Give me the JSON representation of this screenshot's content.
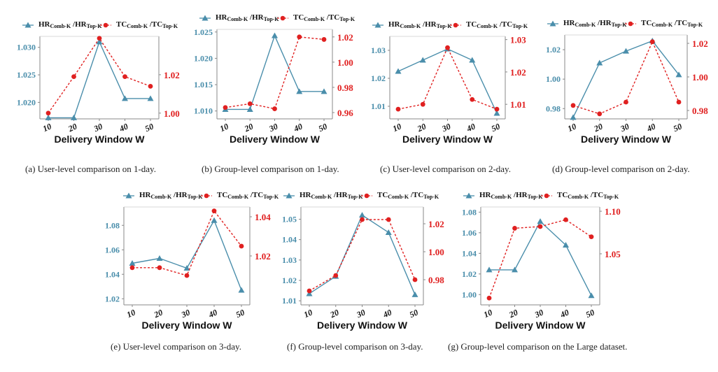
{
  "colors": {
    "hr": "#4a8eab",
    "tc": "#e02020",
    "axis": "#888888",
    "text": "#111111"
  },
  "legend": {
    "hr_main": "HR",
    "hr_sub1": "Comb-K",
    "hr_sep": " /HR",
    "hr_sub2": "Top-K",
    "tc_main": "TC",
    "tc_sub1": "Comb-K",
    "tc_sep": " /TC",
    "tc_sub2": "Top-K"
  },
  "captions": [
    "(a)  User-level comparison on 1-day.",
    "(b)  Group-level comparison on 1-day.",
    "(c)  User-level comparison on 2-day.",
    "(d)  Group-level comparison on 2-day.",
    "(e)  User-level comparison on 3-day.",
    "(f)  Group-level comparison on 3-day.",
    "(g)  Group-level comparison on the Large dataset."
  ],
  "chart_data": [
    {
      "type": "line",
      "xlabel": "Delivery Window W",
      "x": [
        10,
        20,
        30,
        40,
        50
      ],
      "left_ticks": [
        "1.020",
        "1.025",
        "1.030"
      ],
      "right_ticks": [
        "1.00",
        "1.02"
      ],
      "left_lim": [
        1.017,
        1.032
      ],
      "right_lim": [
        0.997,
        1.04
      ],
      "series": [
        {
          "name": "HR Comb-K / HR Top-K",
          "axis": "left",
          "values": [
            1.0172,
            1.0172,
            1.031,
            1.0207,
            1.0207
          ]
        },
        {
          "name": "TC Comb-K / TC Top-K",
          "axis": "right",
          "values": [
            1.0,
            1.019,
            1.039,
            1.019,
            1.014
          ]
        }
      ]
    },
    {
      "type": "line",
      "xlabel": "Delivery Window W",
      "x": [
        10,
        20,
        30,
        40,
        50
      ],
      "left_ticks": [
        "1.010",
        "1.015",
        "1.020",
        "1.025"
      ],
      "right_ticks": [
        "0.96",
        "0.98",
        "1.00",
        "1.02"
      ],
      "left_lim": [
        1.0085,
        1.0255
      ],
      "right_lim": [
        0.955,
        1.026
      ],
      "series": [
        {
          "name": "HR Comb-K / HR Top-K",
          "axis": "left",
          "values": [
            1.0103,
            1.0103,
            1.0243,
            1.0137,
            1.0137
          ]
        },
        {
          "name": "TC Comb-K / TC Top-K",
          "axis": "right",
          "values": [
            0.964,
            0.967,
            0.963,
            1.02,
            1.018
          ]
        }
      ]
    },
    {
      "type": "line",
      "xlabel": "Delivery Window W",
      "x": [
        10,
        20,
        30,
        40,
        50
      ],
      "left_ticks": [
        "1.01",
        "1.02",
        "1.03"
      ],
      "right_ticks": [
        "1.01",
        "1.02",
        "1.03"
      ],
      "left_lim": [
        1.0055,
        1.035
      ],
      "right_lim": [
        1.0055,
        1.031
      ],
      "series": [
        {
          "name": "HR Comb-K / HR Top-K",
          "axis": "left",
          "values": [
            1.0225,
            1.0265,
            1.0305,
            1.0265,
            1.0075
          ]
        },
        {
          "name": "TC Comb-K / TC Top-K",
          "axis": "right",
          "values": [
            1.0085,
            1.01,
            1.0275,
            1.0115,
            1.0085
          ]
        }
      ]
    },
    {
      "type": "line",
      "xlabel": "Delivery Window W",
      "x": [
        10,
        20,
        30,
        40,
        50
      ],
      "left_ticks": [
        "0.98",
        "1.00",
        "1.02"
      ],
      "right_ticks": [
        "0.98",
        "1.00",
        "1.02"
      ],
      "left_lim": [
        0.973,
        1.03
      ],
      "right_lim": [
        0.975,
        1.025
      ],
      "series": [
        {
          "name": "HR Comb-K / HR Top-K",
          "axis": "left",
          "values": [
            0.974,
            1.011,
            1.019,
            1.026,
            1.003
          ]
        },
        {
          "name": "TC Comb-K / TC Top-K",
          "axis": "right",
          "values": [
            0.983,
            0.978,
            0.985,
            1.021,
            0.985
          ]
        }
      ]
    },
    {
      "type": "line",
      "xlabel": "Delivery Window W",
      "x": [
        10,
        20,
        30,
        40,
        50
      ],
      "left_ticks": [
        "1.02",
        "1.04",
        "1.06",
        "1.08"
      ],
      "right_ticks": [
        "1.02",
        "1.04"
      ],
      "left_lim": [
        1.015,
        1.095
      ],
      "right_lim": [
        0.995,
        1.045
      ],
      "series": [
        {
          "name": "HR Comb-K / HR Top-K",
          "axis": "left",
          "values": [
            1.049,
            1.053,
            1.045,
            1.084,
            1.027
          ]
        },
        {
          "name": "TC Comb-K / TC Top-K",
          "axis": "right",
          "values": [
            1.014,
            1.014,
            1.01,
            1.043,
            1.025
          ]
        }
      ]
    },
    {
      "type": "line",
      "xlabel": "Delivery Window W",
      "x": [
        10,
        20,
        30,
        40,
        50
      ],
      "left_ticks": [
        "1.01",
        "1.02",
        "1.03",
        "1.04",
        "1.05"
      ],
      "right_ticks": [
        "0.98",
        "1.00",
        "1.02"
      ],
      "left_lim": [
        1.008,
        1.056
      ],
      "right_lim": [
        0.962,
        1.032
      ],
      "series": [
        {
          "name": "HR Comb-K / HR Top-K",
          "axis": "left",
          "values": [
            1.0135,
            1.022,
            1.052,
            1.0435,
            1.013
          ]
        },
        {
          "name": "TC Comb-K / TC Top-K",
          "axis": "right",
          "values": [
            0.972,
            0.983,
            1.023,
            1.023,
            0.98
          ]
        }
      ]
    },
    {
      "type": "line",
      "xlabel": "Delivery Window W",
      "x": [
        10,
        20,
        30,
        40,
        50
      ],
      "left_ticks": [
        "1.00",
        "1.02",
        "1.04",
        "1.06",
        "1.08"
      ],
      "right_ticks": [
        "1.05",
        "1.10"
      ],
      "left_lim": [
        0.99,
        1.085
      ],
      "right_lim": [
        0.99,
        1.105
      ],
      "series": [
        {
          "name": "HR Comb-K / HR Top-K",
          "axis": "left",
          "values": [
            1.024,
            1.024,
            1.071,
            1.048,
            0.999
          ]
        },
        {
          "name": "TC Comb-K / TC Top-K",
          "axis": "right",
          "values": [
            0.998,
            1.08,
            1.082,
            1.09,
            1.07
          ]
        }
      ]
    }
  ]
}
